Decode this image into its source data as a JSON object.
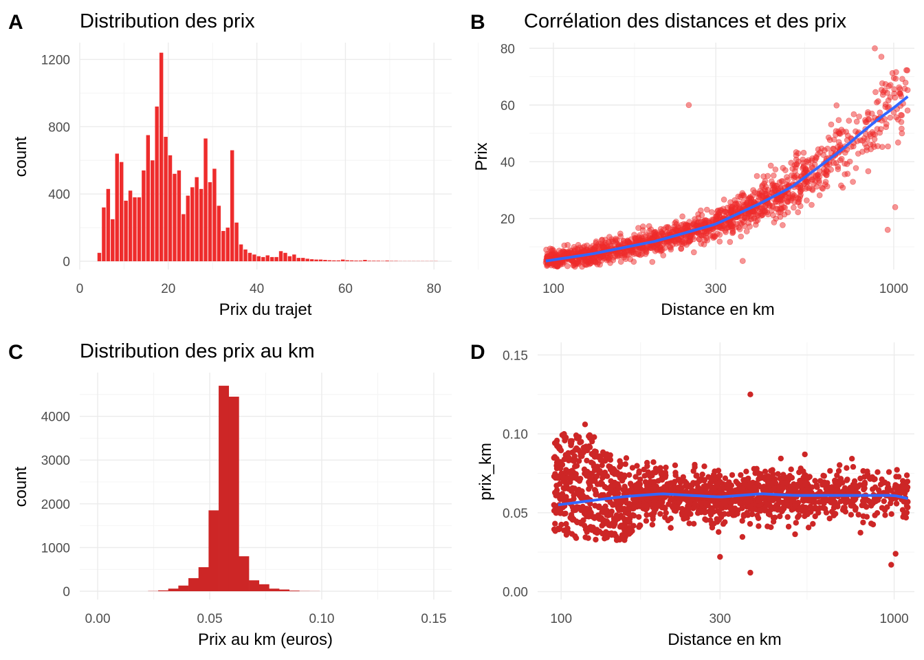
{
  "chart_data": [
    {
      "panel": "A",
      "type": "bar",
      "title": "Distribution des prix",
      "xlabel": "Prix du trajet",
      "ylabel": "count",
      "xlim": [
        0,
        84
      ],
      "ylim": [
        0,
        1300
      ],
      "xticks": [
        0,
        20,
        40,
        60,
        80
      ],
      "yticks": [
        0,
        400,
        800,
        1200
      ],
      "bar_color": "#EE2C2C",
      "bin_width": 1,
      "bins_start": 4,
      "values": [
        50,
        320,
        430,
        250,
        640,
        590,
        360,
        420,
        380,
        380,
        540,
        750,
        600,
        920,
        1240,
        740,
        630,
        520,
        540,
        280,
        390,
        440,
        500,
        430,
        730,
        470,
        550,
        330,
        180,
        200,
        660,
        230,
        100,
        70,
        50,
        40,
        30,
        25,
        35,
        25,
        25,
        60,
        50,
        30,
        40,
        20,
        20,
        15,
        12,
        10,
        10,
        8,
        6,
        5,
        5,
        10,
        6,
        5,
        4,
        4,
        8,
        3,
        3,
        3,
        2,
        4,
        2,
        2,
        1,
        1,
        1,
        1,
        1,
        1,
        1,
        1,
        1
      ]
    },
    {
      "panel": "B",
      "type": "scatter",
      "title": "Corrélation des distances et des prix",
      "xlabel": "Distance en km",
      "ylabel": "Prix",
      "x_scale": "log",
      "xlim": [
        85,
        1150
      ],
      "ylim": [
        2,
        82
      ],
      "xticks": [
        100,
        300,
        1000
      ],
      "yticks": [
        20,
        40,
        60,
        80
      ],
      "point_color": "#EE2C2C",
      "point_opacity": 0.5,
      "trend_color": "#3366FF",
      "trend": {
        "x": [
          95,
          130,
          200,
          300,
          400,
          500,
          600,
          700,
          800,
          900,
          1000,
          1100
        ],
        "y": [
          5,
          7.5,
          12,
          18,
          25,
          31,
          38,
          44,
          50,
          55,
          59,
          63
        ]
      }
    },
    {
      "panel": "C",
      "type": "bar",
      "title": "Distribution des prix au km",
      "xlabel": "Prix au km (euros)",
      "ylabel": "count",
      "xlim": [
        -0.008,
        0.158
      ],
      "ylim": [
        0,
        5000
      ],
      "xticks": [
        "0.00",
        "0.05",
        "0.10",
        "0.15"
      ],
      "yticks": [
        0,
        1000,
        2000,
        3000,
        4000
      ],
      "bar_color": "#CD2626",
      "bin_width": 0.0045,
      "bins_start": 0.0225,
      "values": [
        5,
        20,
        60,
        130,
        300,
        550,
        1850,
        4700,
        4450,
        800,
        250,
        160,
        60,
        40,
        15,
        5,
        3
      ]
    },
    {
      "panel": "D",
      "type": "scatter",
      "title": "",
      "xlabel": "Distance en km",
      "ylabel": "prix_km",
      "x_scale": "log",
      "xlim": [
        85,
        1150
      ],
      "ylim": [
        -0.005,
        0.158
      ],
      "xticks": [
        100,
        300,
        1000
      ],
      "yticks": [
        "0.00",
        "0.05",
        "0.10",
        "0.15"
      ],
      "point_color": "#CD2626",
      "trend_color": "#3366FF",
      "trend": {
        "x": [
          98,
          150,
          200,
          300,
          400,
          500,
          700,
          1000,
          1100
        ],
        "y": [
          0.055,
          0.06,
          0.062,
          0.06,
          0.062,
          0.061,
          0.061,
          0.061,
          0.059
        ]
      }
    }
  ]
}
